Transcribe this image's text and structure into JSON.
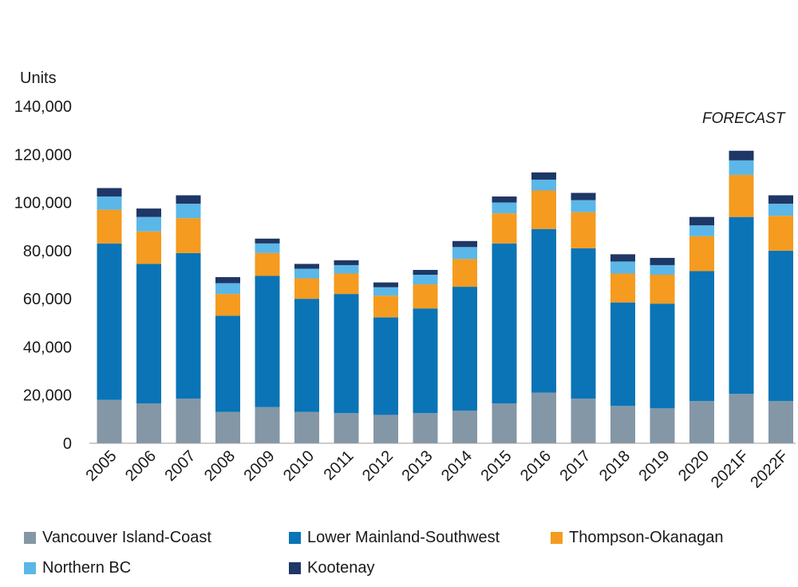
{
  "chart_data": {
    "type": "bar",
    "stacked": true,
    "ylabel": "Units",
    "ylim": [
      0,
      140000
    ],
    "yticks": [
      0,
      20000,
      40000,
      60000,
      80000,
      100000,
      120000,
      140000
    ],
    "ytick_labels": [
      "0",
      "20,000",
      "40,000",
      "60,000",
      "80,000",
      "100,000",
      "120,000",
      "140,000"
    ],
    "categories": [
      "2005",
      "2006",
      "2007",
      "2008",
      "2009",
      "2010",
      "2011",
      "2012",
      "2013",
      "2014",
      "2015",
      "2016",
      "2017",
      "2018",
      "2019",
      "2020",
      "2021F",
      "2022F"
    ],
    "annotation": "FORECAST",
    "grid": false,
    "legend_position": "bottom",
    "series": [
      {
        "name": "Vancouver Island-Coast",
        "color": "#8497a6",
        "values": [
          18000,
          16500,
          18500,
          13000,
          15000,
          13000,
          12500,
          11800,
          12500,
          13500,
          16500,
          21000,
          18500,
          15500,
          14500,
          17500,
          20500,
          17500
        ]
      },
      {
        "name": "Lower Mainland-Southwest",
        "color": "#0a74b6",
        "values": [
          65000,
          58000,
          60500,
          40000,
          54500,
          47000,
          49500,
          40500,
          43500,
          51500,
          66500,
          68000,
          62500,
          43000,
          43500,
          54000,
          73500,
          62500
        ]
      },
      {
        "name": "Thompson-Okanagan",
        "color": "#f59b1f",
        "values": [
          14000,
          13500,
          14500,
          9000,
          9500,
          8500,
          8500,
          9000,
          10000,
          11500,
          12500,
          16000,
          15000,
          12000,
          12000,
          14500,
          17500,
          14500
        ]
      },
      {
        "name": "Northern BC",
        "color": "#5bb7e8",
        "values": [
          5500,
          6000,
          6000,
          4500,
          4000,
          4000,
          3500,
          3500,
          4000,
          5000,
          4500,
          4500,
          5000,
          5000,
          4000,
          4500,
          6000,
          5000
        ]
      },
      {
        "name": "Kootenay",
        "color": "#1e3766",
        "values": [
          3500,
          3500,
          3500,
          2500,
          2000,
          2000,
          2000,
          2000,
          2000,
          2500,
          2500,
          3000,
          3000,
          3000,
          3000,
          3500,
          4000,
          3500
        ]
      }
    ]
  }
}
